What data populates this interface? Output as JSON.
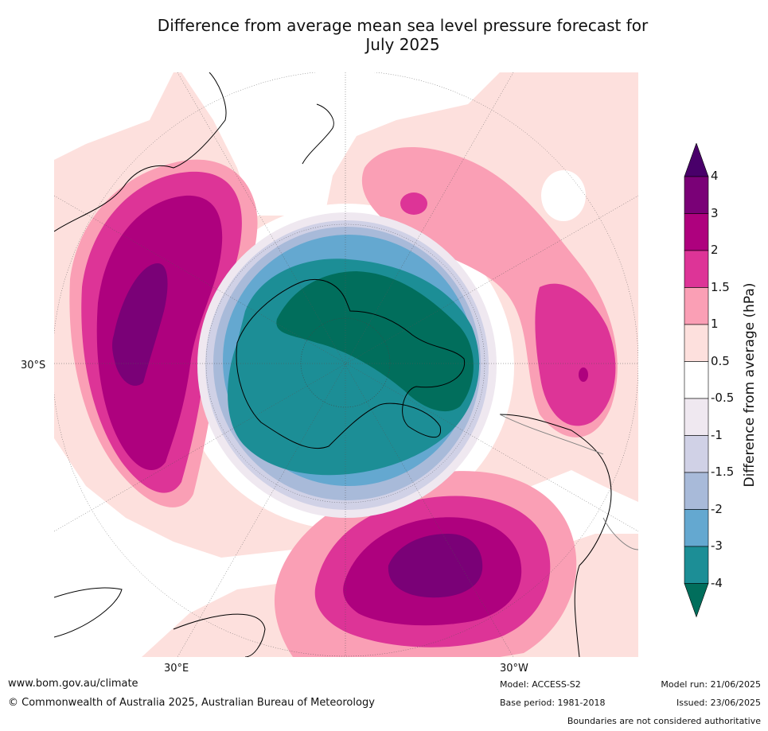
{
  "title": {
    "line1": "Difference from average mean sea level pressure forecast for",
    "line2": "July 2025"
  },
  "map": {
    "projection": "south-polar-stereographic",
    "labels": {
      "lat_30s": "30°S",
      "lon_30e": "30°E",
      "lon_30w": "30°W"
    },
    "colors": {
      "land_line": "#000000",
      "graticule": "#555555",
      "boundary": "#808080"
    }
  },
  "legend": {
    "title": "Difference from average (hPa)",
    "tick_labels": [
      "-4",
      "-3",
      "-2",
      "-1.5",
      "-1",
      "-0.5",
      "0.5",
      "1",
      "1.5",
      "2",
      "3",
      "4"
    ],
    "bins": [
      {
        "range": "< -4",
        "color": "#016e5c"
      },
      {
        "range": "-4 to -3",
        "color": "#1c8e96"
      },
      {
        "range": "-3 to -2",
        "color": "#64a8d0"
      },
      {
        "range": "-2 to -1.5",
        "color": "#a8bad9"
      },
      {
        "range": "-1.5 to -1",
        "color": "#d0d1e6"
      },
      {
        "range": "-1 to -0.5",
        "color": "#efe8f0"
      },
      {
        "range": "-0.5 to 0.5",
        "color": "#ffffff"
      },
      {
        "range": "0.5 to 1",
        "color": "#fde0dd"
      },
      {
        "range": "1 to 1.5",
        "color": "#fa9fb5"
      },
      {
        "range": "1.5 to 2",
        "color": "#dd3497"
      },
      {
        "range": "2 to 3",
        "color": "#ae017e"
      },
      {
        "range": "3 to 4",
        "color": "#7a0177"
      },
      {
        "range": "> 4",
        "color": "#49006a"
      }
    ]
  },
  "footer": {
    "website": "www.bom.gov.au/climate",
    "copyright": "© Commonwealth of Australia 2025, Australian Bureau of Meteorology",
    "model": "Model: ACCESS-S2",
    "base_period": "Base period: 1981-2018",
    "model_run": "Model run: 21/06/2025",
    "issued": "Issued: 23/06/2025",
    "disclaimer": "Boundaries are not considered authoritative"
  }
}
